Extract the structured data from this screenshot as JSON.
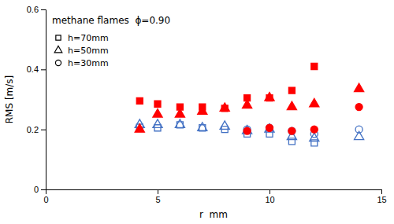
{
  "chart_data": {
    "type": "scatter",
    "title": "methane flames  ϕ=0.90",
    "x_label": "r  mm",
    "y_label": "RMS [m/s]",
    "xlim": [
      0,
      15
    ],
    "ylim": [
      0,
      0.6
    ],
    "xticks": [
      0,
      5,
      10,
      15
    ],
    "yticks": [
      0,
      0.2,
      0.4,
      0.6
    ],
    "grid": false,
    "legend": "upper-left",
    "series": [
      {
        "name": "h=70mm",
        "color": "#4472C4",
        "marker": "square-open",
        "x": [
          4.2,
          5.0,
          6.0,
          7.0,
          8.0,
          9.0,
          10.0,
          11.0,
          12.0
        ],
        "values": [
          0.207,
          0.205,
          0.215,
          0.205,
          0.2,
          0.185,
          0.185,
          0.16,
          0.155
        ]
      },
      {
        "color": "#FF0000",
        "marker": "square",
        "x": [
          4.2,
          5.0,
          6.0,
          7.0,
          8.0,
          9.0,
          10.0,
          11.0,
          12.0
        ],
        "values": [
          0.295,
          0.285,
          0.275,
          0.275,
          0.27,
          0.305,
          0.305,
          0.33,
          0.41
        ]
      },
      {
        "name": "h=50mm",
        "color": "#4472C4",
        "marker": "triangle-open",
        "x": [
          4.2,
          5.0,
          6.0,
          7.0,
          8.0,
          9.0,
          10.0,
          11.0,
          12.0,
          14.0
        ],
        "values": [
          0.215,
          0.215,
          0.215,
          0.205,
          0.21,
          0.195,
          0.2,
          0.175,
          0.17,
          0.175
        ]
      },
      {
        "color": "#FF0000",
        "marker": "triangle",
        "x": [
          4.2,
          5.0,
          6.0,
          7.0,
          8.0,
          9.0,
          10.0,
          11.0,
          12.0,
          14.0
        ],
        "values": [
          0.2,
          0.25,
          0.25,
          0.26,
          0.27,
          0.28,
          0.305,
          0.275,
          0.285,
          0.335
        ]
      },
      {
        "name": "h=30mm",
        "color": "#4472C4",
        "marker": "circle-open",
        "x": [
          9.0,
          10.0,
          11.0,
          12.0,
          14.0
        ],
        "values": [
          0.2,
          0.205,
          0.195,
          0.185,
          0.2
        ]
      },
      {
        "color": "#FF0000",
        "marker": "circle",
        "x": [
          9.0,
          10.0,
          11.0,
          12.0,
          14.0
        ],
        "values": [
          0.195,
          0.205,
          0.195,
          0.2,
          0.275
        ]
      }
    ]
  }
}
